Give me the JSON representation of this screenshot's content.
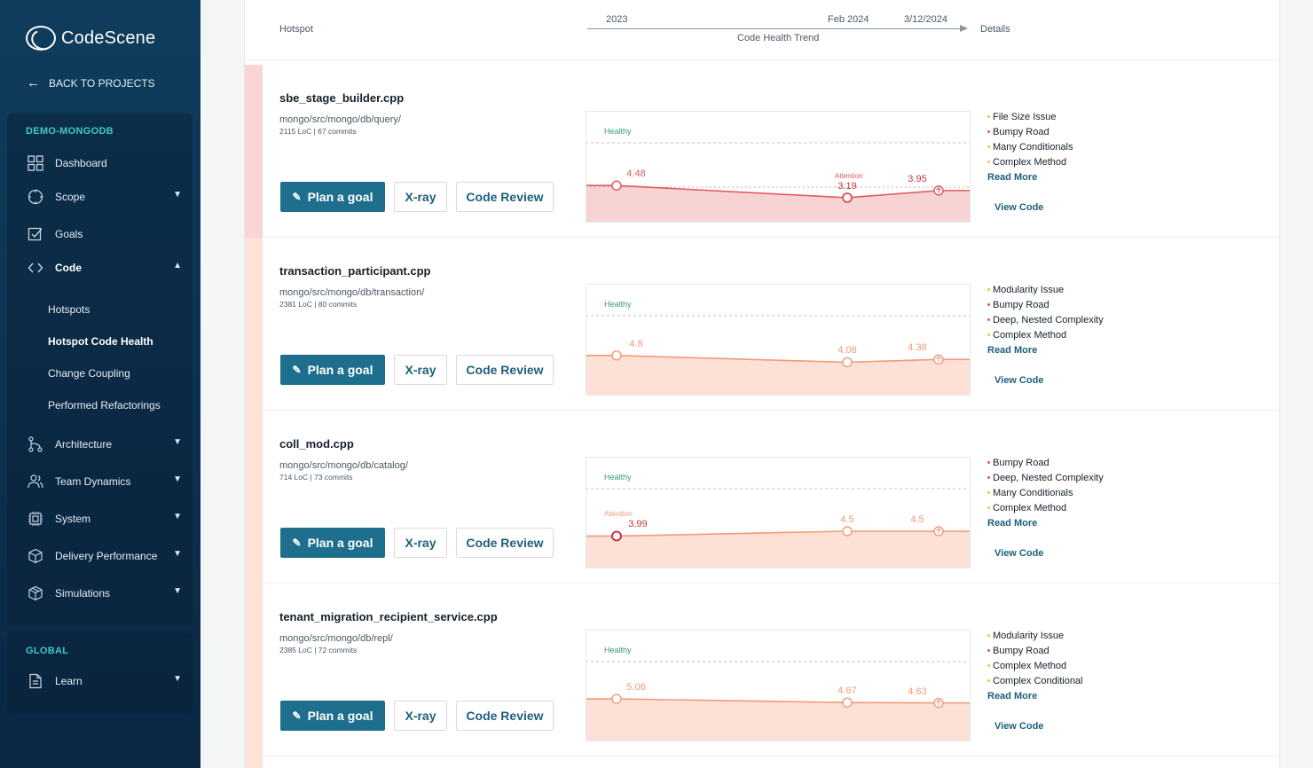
{
  "app": {
    "name": "CodeScene"
  },
  "sidebar": {
    "back_label": "BACK TO PROJECTS",
    "project_title": "DEMO-MONGODB",
    "items": [
      {
        "label": "Dashboard",
        "icon": "dashboard-icon",
        "expandable": false
      },
      {
        "label": "Scope",
        "icon": "scope-icon",
        "expandable": true
      },
      {
        "label": "Goals",
        "icon": "goals-icon",
        "expandable": false
      },
      {
        "label": "Code",
        "icon": "code-icon",
        "expandable": true,
        "expanded": true
      },
      {
        "label": "Architecture",
        "icon": "architecture-icon",
        "expandable": true
      },
      {
        "label": "Team Dynamics",
        "icon": "team-icon",
        "expandable": true
      },
      {
        "label": "System",
        "icon": "system-icon",
        "expandable": true
      },
      {
        "label": "Delivery Performance",
        "icon": "delivery-icon",
        "expandable": true
      },
      {
        "label": "Simulations",
        "icon": "simulations-icon",
        "expandable": true
      }
    ],
    "code_sub_items": [
      {
        "label": "Hotspots",
        "active": false
      },
      {
        "label": "Hotspot Code Health",
        "active": true
      },
      {
        "label": "Change Coupling",
        "active": false
      },
      {
        "label": "Performed Refactorings",
        "active": false
      }
    ],
    "global_title": "GLOBAL",
    "global_items": [
      {
        "label": "Learn",
        "icon": "learn-icon",
        "expandable": true
      }
    ]
  },
  "header": {
    "hotspot_label": "Hotspot",
    "trend_label": "Code Health Trend",
    "details_label": "Details",
    "ticks": [
      "2023",
      "Feb 2024",
      "3/12/2024"
    ]
  },
  "labels": {
    "plan_goal": "Plan a goal",
    "xray": "X-ray",
    "code_review": "Code Review",
    "read_more": "Read More",
    "view_code": "View Code",
    "healthy": "Healthy",
    "attention": "Attention"
  },
  "colors": {
    "red": "#e0595e",
    "orange": "#f29a78",
    "yellow": "#f2c24b",
    "teal_accent": "#3fc8c8",
    "button_primary": "#1e6f8d"
  },
  "hotspots": [
    {
      "name": "sbe_stage_builder.cpp",
      "path": "mongo/src/mongo/db/query/",
      "meta": "2115 LoC | 67 commits",
      "severity": "red",
      "trend": [
        "4.48",
        "3.19",
        "3.95"
      ],
      "trend_values": [
        4.48,
        3.19,
        3.95
      ],
      "attention_at": 1,
      "issues": [
        {
          "label": "File Size Issue",
          "level": "yellow"
        },
        {
          "label": "Bumpy Road",
          "level": "red"
        },
        {
          "label": "Many Conditionals",
          "level": "yellow"
        },
        {
          "label": "Complex Method",
          "level": "yellow"
        }
      ]
    },
    {
      "name": "transaction_participant.cpp",
      "path": "mongo/src/mongo/db/transaction/",
      "meta": "2381 LoC | 80 commits",
      "severity": "orange",
      "trend": [
        "4.8",
        "4.08",
        "4.38"
      ],
      "trend_values": [
        4.8,
        4.08,
        4.38
      ],
      "attention_at": -1,
      "issues": [
        {
          "label": "Modularity Issue",
          "level": "yellow"
        },
        {
          "label": "Bumpy Road",
          "level": "red"
        },
        {
          "label": "Deep, Nested Complexity",
          "level": "red"
        },
        {
          "label": "Complex Method",
          "level": "yellow"
        }
      ]
    },
    {
      "name": "coll_mod.cpp",
      "path": "mongo/src/mongo/db/catalog/",
      "meta": "714 LoC | 73 commits",
      "severity": "orange",
      "trend": [
        "3.99",
        "4.5",
        "4.5"
      ],
      "trend_values": [
        3.99,
        4.5,
        4.5
      ],
      "attention_at": 0,
      "issues": [
        {
          "label": "Bumpy Road",
          "level": "red"
        },
        {
          "label": "Deep, Nested Complexity",
          "level": "red"
        },
        {
          "label": "Many Conditionals",
          "level": "yellow"
        },
        {
          "label": "Complex Method",
          "level": "yellow"
        }
      ]
    },
    {
      "name": "tenant_migration_recipient_service.cpp",
      "path": "mongo/src/mongo/db/repl/",
      "meta": "2385 LoC | 72 commits",
      "severity": "orange",
      "trend": [
        "5.06",
        "4.67",
        "4.63"
      ],
      "trend_values": [
        5.06,
        4.67,
        4.63
      ],
      "attention_at": -1,
      "issues": [
        {
          "label": "Modularity Issue",
          "level": "yellow"
        },
        {
          "label": "Bumpy Road",
          "level": "red"
        },
        {
          "label": "Complex Method",
          "level": "yellow"
        },
        {
          "label": "Complex Conditional",
          "level": "yellow"
        }
      ]
    }
  ]
}
